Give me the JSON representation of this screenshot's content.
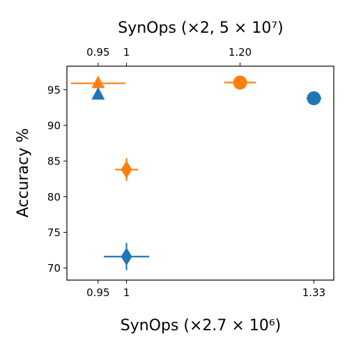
{
  "chart_data": {
    "type": "scatter",
    "xlabel": "SynOps (×2.7 × 10⁶)",
    "x2label": "SynOps (×2, 5 × 10⁷)",
    "ylabel": "Accuracy %",
    "xlim": [
      0.895,
      1.365
    ],
    "ylim": [
      68.3,
      98.3
    ],
    "xticks": [
      {
        "value": 0.95,
        "label": "0.95"
      },
      {
        "value": 1.0,
        "label": "1"
      },
      {
        "value": 1.33,
        "label": "1.33"
      }
    ],
    "x2ticks": [
      {
        "value": 0.95,
        "label": "0.95"
      },
      {
        "value": 1.0,
        "label": "1"
      },
      {
        "value": 1.2,
        "label": "1.20"
      }
    ],
    "yticks": [
      70,
      75,
      80,
      85,
      90,
      95
    ],
    "grid": false,
    "colors": {
      "blue": "#1f77b4",
      "orange": "#ff7f0e"
    },
    "points": [
      {
        "axis": "top",
        "color": "orange",
        "marker": "triangle",
        "x": 0.95,
        "y": 95.9,
        "xerr": 0.048,
        "yerr": 0
      },
      {
        "axis": "top",
        "color": "orange",
        "marker": "circle",
        "x": 1.2,
        "y": 96.0,
        "xerr": 0.028,
        "yerr": 0
      },
      {
        "axis": "bottom",
        "color": "blue",
        "marker": "triangle",
        "x": 0.95,
        "y": 94.3,
        "xerr": 0,
        "yerr": 0.6
      },
      {
        "axis": "bottom",
        "color": "blue",
        "marker": "circle",
        "x": 1.33,
        "y": 93.8,
        "xerr": 0.013,
        "yerr": 0
      },
      {
        "axis": "bottom",
        "color": "orange",
        "marker": "diamond",
        "x": 1.0,
        "y": 83.8,
        "xerr": 0.02,
        "yerr": 1.6
      },
      {
        "axis": "bottom",
        "color": "blue",
        "marker": "diamond",
        "x": 1.0,
        "y": 71.6,
        "xerr": 0.04,
        "yerr": 1.9
      }
    ]
  }
}
